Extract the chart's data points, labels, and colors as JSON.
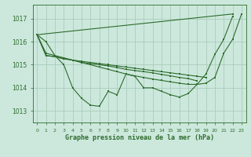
{
  "background_color": "#cce8dc",
  "grid_color": "#aaccbb",
  "line_color": "#2d6b2d",
  "xlabel": "Graphe pression niveau de la mer (hPa)",
  "xlim": [
    -0.5,
    23.5
  ],
  "ylim": [
    1012.5,
    1017.6
  ],
  "yticks": [
    1013,
    1014,
    1015,
    1016,
    1017
  ],
  "xticks": [
    0,
    1,
    2,
    3,
    4,
    5,
    6,
    7,
    8,
    9,
    10,
    11,
    12,
    13,
    14,
    15,
    16,
    17,
    18,
    19,
    20,
    21,
    22,
    23
  ],
  "lines": [
    {
      "x": [
        0,
        1,
        2,
        3,
        4,
        5,
        6,
        7,
        8,
        9,
        10,
        11,
        12,
        13,
        14,
        15,
        16,
        17,
        18,
        19,
        20,
        21,
        22
      ],
      "y": [
        1016.3,
        1016.0,
        1015.4,
        1015.0,
        1014.0,
        1013.55,
        1013.25,
        1013.2,
        1013.85,
        1013.7,
        1014.6,
        1014.5,
        1014.0,
        1014.0,
        1013.85,
        1013.7,
        1013.6,
        1013.75,
        1014.15,
        1014.6,
        1015.45,
        1016.1,
        1017.1
      ]
    },
    {
      "x": [
        0,
        22
      ],
      "y": [
        1016.3,
        1017.2
      ]
    },
    {
      "x": [
        0,
        1,
        2,
        3,
        4,
        5,
        6,
        7,
        8,
        9,
        10,
        11,
        12,
        13,
        14,
        15,
        16,
        17,
        18,
        19
      ],
      "y": [
        1016.3,
        1015.4,
        1015.35,
        1015.25,
        1015.2,
        1015.15,
        1015.1,
        1015.05,
        1015.0,
        1014.95,
        1014.9,
        1014.85,
        1014.8,
        1014.75,
        1014.7,
        1014.65,
        1014.6,
        1014.55,
        1014.5,
        1014.45
      ]
    },
    {
      "x": [
        0,
        1,
        2,
        3,
        4,
        5,
        6,
        7,
        8,
        9,
        10,
        11,
        12,
        13,
        14,
        15,
        16,
        17,
        18
      ],
      "y": [
        1016.3,
        1015.4,
        1015.35,
        1015.28,
        1015.2,
        1015.1,
        1015.05,
        1015.0,
        1014.95,
        1014.88,
        1014.8,
        1014.75,
        1014.7,
        1014.65,
        1014.58,
        1014.52,
        1014.45,
        1014.4,
        1014.3
      ]
    },
    {
      "x": [
        0,
        1,
        2,
        3,
        4,
        5,
        6,
        7,
        8,
        9,
        10,
        11,
        12,
        13,
        14,
        15,
        16,
        17,
        18,
        19,
        20,
        21,
        22,
        23
      ],
      "y": [
        1016.3,
        1015.5,
        1015.4,
        1015.3,
        1015.2,
        1015.1,
        1015.0,
        1014.9,
        1014.8,
        1014.7,
        1014.6,
        1014.52,
        1014.45,
        1014.38,
        1014.32,
        1014.26,
        1014.2,
        1014.15,
        1014.15,
        1014.2,
        1014.45,
        1015.5,
        1016.1,
        1017.2
      ]
    }
  ]
}
